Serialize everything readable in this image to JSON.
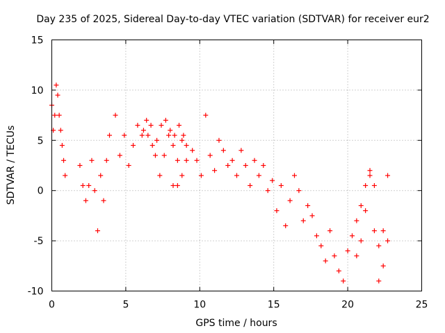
{
  "chart_data": {
    "type": "scatter",
    "title": "Day 235 of 2025, Sidereal Day-to-day VTEC variation (SDTVAR) for receiver eur2",
    "xlabel": "GPS time / hours",
    "ylabel": "SDTVAR / TECUs",
    "xlim": [
      0,
      25
    ],
    "ylim": [
      -10,
      15
    ],
    "x_ticks": [
      0,
      5,
      10,
      15,
      20,
      25
    ],
    "y_ticks": [
      -10,
      -5,
      0,
      5,
      10,
      15
    ],
    "x_tick_labels": [
      "0",
      "5",
      "10",
      "15",
      "20",
      "25"
    ],
    "y_tick_labels": [
      "-10",
      "-5",
      "0",
      "5",
      "10",
      "15"
    ],
    "grid": true,
    "marker": "+",
    "marker_color": "#ff0000",
    "series": [
      {
        "name": "eur2",
        "segments": [
          {
            "x": [
              0.0,
              0.1,
              0.2,
              0.3,
              0.4,
              0.5,
              0.6,
              0.7,
              0.8,
              0.9
            ],
            "y": [
              8.5,
              6.0,
              7.5,
              10.5,
              9.5,
              7.5,
              6.0,
              4.5,
              3.0,
              1.5
            ]
          },
          {
            "x": [
              1.9,
              2.1,
              2.3,
              2.5,
              2.7,
              2.9,
              3.1,
              3.3,
              3.5,
              3.7,
              3.9
            ],
            "y": [
              2.5,
              0.5,
              -1.0,
              0.5,
              3.0,
              0.0,
              -4.0,
              1.5,
              -1.0,
              3.0,
              5.5
            ]
          },
          {
            "x": [
              4.3,
              4.6,
              4.9,
              5.2,
              5.5,
              5.8,
              6.1,
              6.4,
              6.7,
              7.0,
              7.3,
              7.6,
              7.9,
              8.2,
              8.5,
              8.8,
              9.1
            ],
            "y": [
              7.5,
              3.5,
              5.5,
              2.5,
              4.5,
              6.5,
              5.5,
              7.0,
              6.5,
              3.5,
              1.5,
              3.5,
              5.5,
              4.5,
              3.0,
              5.0,
              4.5
            ]
          },
          {
            "x": [
              8.2,
              8.5,
              8.8,
              9.1
            ],
            "y": [
              0.5,
              0.5,
              1.5,
              3.0
            ]
          },
          {
            "x": [
              6.2,
              6.5,
              6.8,
              7.1,
              7.4,
              7.7,
              8.0,
              8.3,
              8.6,
              8.9
            ],
            "y": [
              6.0,
              5.5,
              4.5,
              5.0,
              6.5,
              7.0,
              6.0,
              5.5,
              6.5,
              5.5
            ]
          },
          {
            "x": [
              9.5,
              9.8,
              10.1,
              10.4,
              10.7,
              11.0,
              11.3,
              11.6,
              11.9,
              12.2,
              12.5,
              12.8,
              13.1,
              13.4,
              13.7,
              14.0
            ],
            "y": [
              4.0,
              3.0,
              1.5,
              7.5,
              3.5,
              2.0,
              5.0,
              4.0,
              2.5,
              3.0,
              1.5,
              4.0,
              2.5,
              0.5,
              3.0,
              1.5
            ]
          },
          {
            "x": [
              14.3,
              14.6,
              14.9,
              15.2,
              15.5,
              15.8,
              16.1,
              16.4,
              16.7,
              17.0,
              17.3,
              17.6,
              17.9,
              18.2,
              18.5
            ],
            "y": [
              2.5,
              0.0,
              1.0,
              -2.0,
              0.5,
              -3.5,
              -1.0,
              1.5,
              0.0,
              -3.0,
              -1.5,
              -2.5,
              -4.5,
              -5.5,
              -7.0
            ]
          },
          {
            "x": [
              18.8,
              19.1,
              19.4,
              19.7,
              20.0,
              20.3,
              20.6,
              20.9,
              21.2,
              21.5,
              21.8,
              22.1,
              22.4,
              22.7
            ],
            "y": [
              -4.0,
              -6.5,
              -8.0,
              -9.0,
              -6.0,
              -4.5,
              -6.5,
              -5.0,
              -2.0,
              1.5,
              -4.0,
              -9.0,
              -4.0,
              1.5
            ]
          },
          {
            "x": [
              20.6,
              20.9,
              21.2,
              21.5,
              21.8,
              22.1,
              22.4,
              22.7
            ],
            "y": [
              -3.0,
              -1.5,
              0.5,
              2.0,
              0.5,
              -5.5,
              -7.5,
              -5.0
            ]
          }
        ]
      }
    ]
  }
}
